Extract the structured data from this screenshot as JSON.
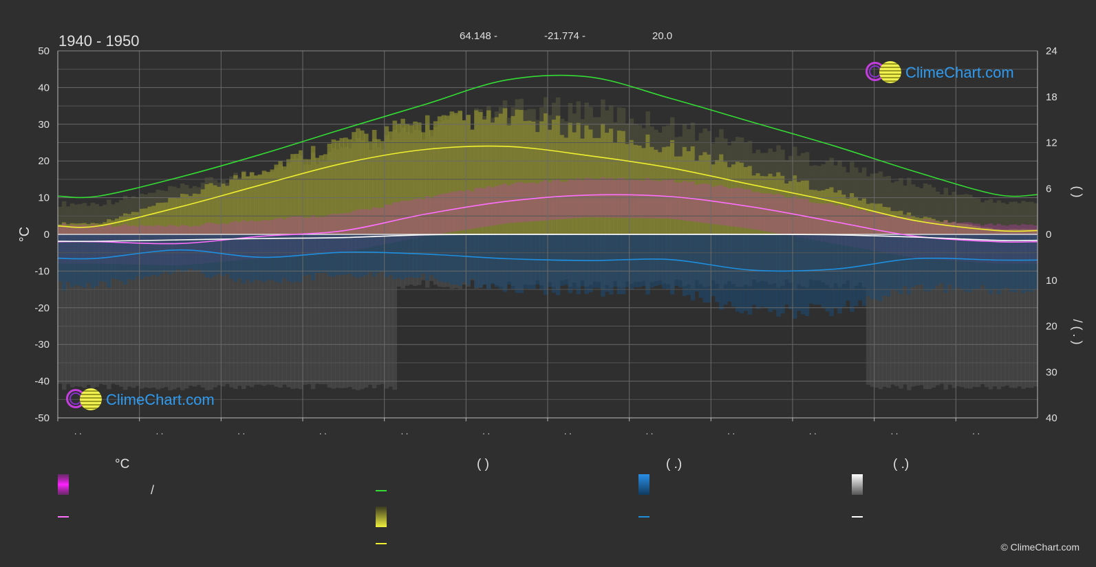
{
  "header": {
    "period": "1940 - 1950",
    "latitude": "64.148 -",
    "longitude": "-21.774 -",
    "elevation": "20.0"
  },
  "brand": {
    "logo_text": "ClimeChart.com",
    "copyright": "© ClimeChart.com"
  },
  "legend": {
    "temp_header": "°C",
    "daylight_header": "(          )",
    "rain_header": "(   .)",
    "snow_header": "(   .)",
    "range_label": "/",
    "colors": {
      "temp_range": "#e020e0",
      "temp_mean": "#ff70ff",
      "daylight": "#33dd33",
      "sunshine_band": "#e8e83a",
      "sunshine_mean": "#f0f030",
      "rain_band": "#1a7fd8",
      "rain_mean": "#1e8fe0",
      "snow_band": "#eeeeee",
      "snow_mean": "#ffffff"
    }
  },
  "chart_data": {
    "type": "line",
    "x": [
      1,
      2,
      3,
      4,
      5,
      6,
      7,
      8,
      9,
      10,
      11,
      12
    ],
    "x_tick_labels": [
      ". .",
      ". .",
      ". .",
      ". .",
      ". .",
      ". .",
      ". .",
      ". .",
      ". .",
      ". .",
      ". .",
      ". ."
    ],
    "y_left": {
      "label": "°C",
      "lim": [
        -50,
        50
      ],
      "ticks": [
        50,
        40,
        30,
        20,
        10,
        0,
        -10,
        -20,
        -30,
        -40,
        -50
      ]
    },
    "y_right_top": {
      "lim": [
        0,
        24
      ],
      "ticks": [
        24,
        18,
        12,
        6,
        0
      ],
      "label": "(     )"
    },
    "y_right_bottom": {
      "lim": [
        0,
        40
      ],
      "ticks": [
        0,
        10,
        20,
        30,
        40
      ],
      "label": "/  (  .  )"
    },
    "grid": true,
    "series": [
      {
        "key": "daylight_hours",
        "axis": "right_top",
        "color": "#33dd33",
        "values": [
          5.0,
          7.5,
          10.5,
          13.8,
          17.0,
          20.2,
          20.6,
          17.8,
          14.7,
          11.6,
          8.2,
          5.2
        ]
      },
      {
        "key": "sunshine_hours",
        "axis": "right_top",
        "color": "#f0f030",
        "values": [
          1.1,
          3.6,
          6.5,
          9.3,
          11.1,
          11.5,
          10.3,
          8.7,
          6.5,
          4.3,
          1.8,
          0.5
        ]
      },
      {
        "key": "temp_mean",
        "axis": "left",
        "color": "#ff70ff",
        "values": [
          -2.0,
          -2.5,
          -0.5,
          1.0,
          5.5,
          9.0,
          10.7,
          10.3,
          7.5,
          3.5,
          -0.5,
          -2.0
        ]
      },
      {
        "key": "snow_mean",
        "axis": "right_bottom",
        "color": "#ffffff",
        "values": [
          1.5,
          1.2,
          0.9,
          0.7,
          0.1,
          0.0,
          0.0,
          0.0,
          0.0,
          0.1,
          0.6,
          1.3
        ]
      },
      {
        "key": "rain_mean",
        "axis": "right_bottom",
        "color": "#1e8fe0",
        "values": [
          5.2,
          3.4,
          5.0,
          3.9,
          4.3,
          5.3,
          5.7,
          5.5,
          7.8,
          7.6,
          5.3,
          5.6
        ]
      }
    ]
  }
}
